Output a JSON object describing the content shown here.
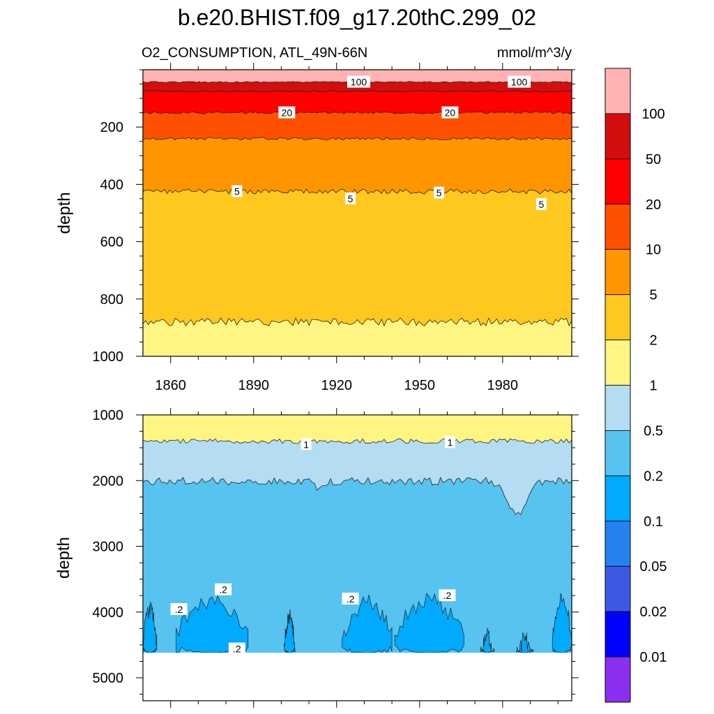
{
  "title": "b.e20.BHIST.f09_g17.20thC.299_02",
  "subtitle_left": "O2_CONSUMPTION, ATL_49N-66N",
  "subtitle_right": "mmol/m^3/y",
  "colors": {
    "c100plus": "#ffb3b3",
    "c50_100": "#d20f0f",
    "c20_50": "#ff0000",
    "c10_20": "#ff5000",
    "c5_10": "#ff9600",
    "c2_5": "#ffc81e",
    "c1_2": "#fff583",
    "c05_1": "#b4dcf2",
    "c02_05": "#56c3f0",
    "c01_02": "#00aaff",
    "c005_01": "#2382f0",
    "c002_005": "#3c5ae6",
    "c001_002": "#0000ff",
    "c0_001": "#8b2ff0",
    "empty": "#ffffff"
  },
  "chart_data": [
    {
      "type": "heatmap",
      "panel": "upper",
      "ylabel": "depth",
      "y_range": [
        0,
        1000
      ],
      "y_inverted": true,
      "y_ticks": [
        200,
        400,
        600,
        800,
        1000
      ],
      "x_range": [
        1850,
        2005
      ],
      "x_ticks": [
        1860,
        1890,
        1920,
        1950,
        1980
      ],
      "bands": [
        {
          "min_value": 100,
          "top": 0,
          "bottom": 43
        },
        {
          "min_value": 50,
          "top": 43,
          "bottom": 75
        },
        {
          "min_value": 20,
          "top": 75,
          "bottom": 150
        },
        {
          "min_value": 10,
          "top": 150,
          "bottom": 240
        },
        {
          "min_value": 5,
          "top": 240,
          "bottom": 425
        },
        {
          "min_value": 2,
          "top": 425,
          "bottom": 880
        },
        {
          "min_value": 1,
          "top": 880,
          "bottom": 1000
        }
      ],
      "contour_labels": [
        {
          "text": "100",
          "x": 1928,
          "y": 43
        },
        {
          "text": "100",
          "x": 1986,
          "y": 43
        },
        {
          "text": "20",
          "x": 1902,
          "y": 150
        },
        {
          "text": "20",
          "x": 1961,
          "y": 150
        },
        {
          "text": "5",
          "x": 1884,
          "y": 425
        },
        {
          "text": "5",
          "x": 1925,
          "y": 450
        },
        {
          "text": "5",
          "x": 1957,
          "y": 430
        },
        {
          "text": "5",
          "x": 1994,
          "y": 470
        }
      ]
    },
    {
      "type": "heatmap",
      "panel": "lower",
      "ylabel": "depth",
      "y_range": [
        1000,
        5350
      ],
      "y_inverted": true,
      "y_ticks": [
        1000,
        2000,
        3000,
        4000,
        5000
      ],
      "x_range": [
        1850,
        2005
      ],
      "x_ticks": [
        1860,
        1890,
        1920,
        1950,
        1980
      ],
      "ocean_floor": 4620,
      "bands": [
        {
          "min_value": 1,
          "top": 1000,
          "bottom": 1400
        },
        {
          "min_value": 0.5,
          "top": 1400,
          "bottom": 2010
        },
        {
          "min_value": 0.2,
          "top": 2010,
          "bottom": 4620
        }
      ],
      "deep_patches": [
        {
          "x0": 1850,
          "x1": 1855,
          "top": 3900
        },
        {
          "x0": 1862,
          "x1": 1888,
          "top": 3780
        },
        {
          "x0": 1901,
          "x1": 1905,
          "top": 4000
        },
        {
          "x0": 1922,
          "x1": 1940,
          "top": 3800
        },
        {
          "x0": 1941,
          "x1": 1966,
          "top": 3770
        },
        {
          "x0": 1972,
          "x1": 1977,
          "top": 4300
        },
        {
          "x0": 1985,
          "x1": 1991,
          "top": 4350
        },
        {
          "x0": 1998,
          "x1": 2005,
          "top": 3780
        }
      ],
      "contour_labels": [
        {
          "text": "1",
          "x": 1909,
          "y": 1450
        },
        {
          "text": "1",
          "x": 1961,
          "y": 1420
        },
        {
          "text": ".2",
          "x": 1863,
          "y": 3960
        },
        {
          "text": ".2",
          "x": 1879,
          "y": 3660
        },
        {
          "text": ".2",
          "x": 1925,
          "y": 3800
        },
        {
          "text": ".2",
          "x": 1960,
          "y": 3750
        },
        {
          "text": ".2",
          "x": 1884,
          "y": 4560
        }
      ]
    }
  ],
  "colorbar": {
    "labels": [
      "100",
      "50",
      "20",
      "10",
      "5",
      "2",
      "1",
      "0.5",
      "0.2",
      "0.1",
      "0.05",
      "0.02",
      "0.01"
    ]
  }
}
